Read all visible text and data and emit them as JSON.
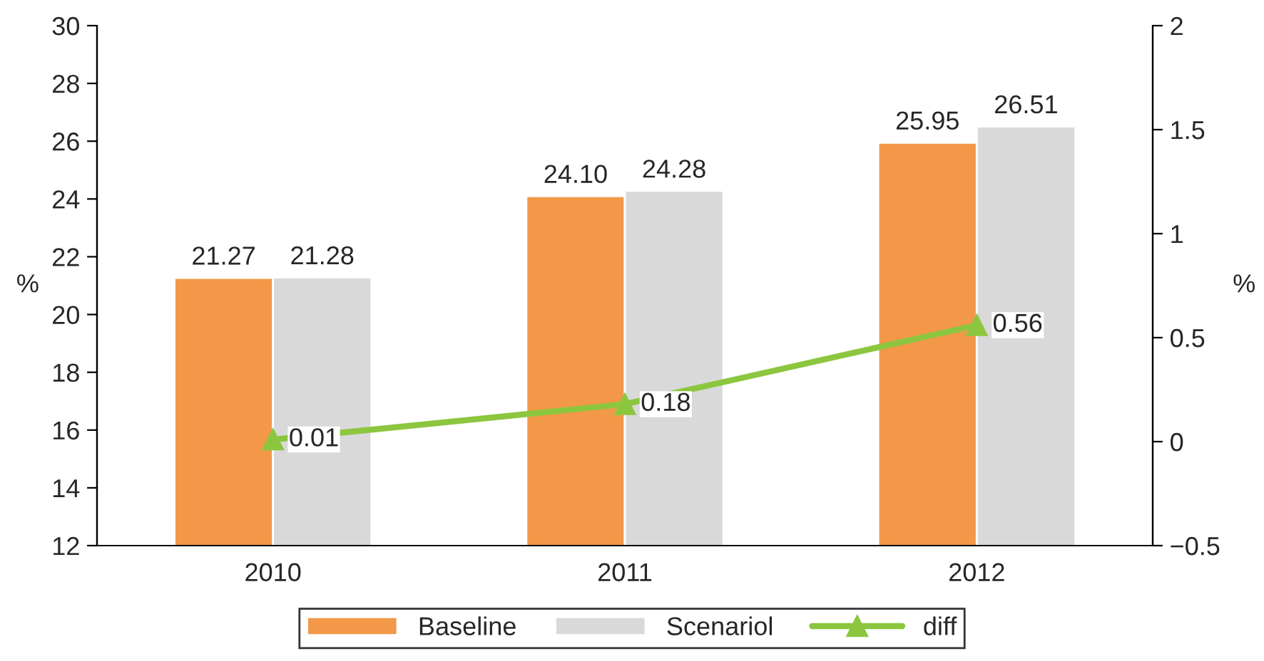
{
  "chart_data": {
    "type": "bar",
    "categories": [
      "2010",
      "2011",
      "2012"
    ],
    "ylabel": "%",
    "y2label": "%",
    "ylim": [
      12,
      30
    ],
    "yticks": [
      12,
      14,
      16,
      18,
      20,
      22,
      24,
      26,
      28,
      30
    ],
    "y2lim": [
      -0.5,
      2
    ],
    "y2ticks": [
      {
        "value": -0.5,
        "label": "−0.5"
      },
      0,
      0.5,
      1,
      1.5,
      2
    ],
    "series": [
      {
        "name": "Baseline",
        "color": "#f39848",
        "values": [
          21.27,
          24.1,
          25.95
        ],
        "value_labels": [
          "21.27",
          "24.10",
          "25.95"
        ]
      },
      {
        "name": "Scenariol",
        "color": "#d9d9d9",
        "values": [
          21.28,
          24.28,
          26.51
        ],
        "value_labels": [
          "21.28",
          "24.28",
          "26.51"
        ]
      },
      {
        "name": "diff",
        "type": "line",
        "axis": "y2",
        "color": "#8cc63f",
        "marker": "triangle",
        "values": [
          0.01,
          0.18,
          0.56
        ],
        "value_labels": [
          "0.01",
          "0.18",
          "0.56"
        ]
      }
    ],
    "legend": "bottom",
    "grid": false
  }
}
